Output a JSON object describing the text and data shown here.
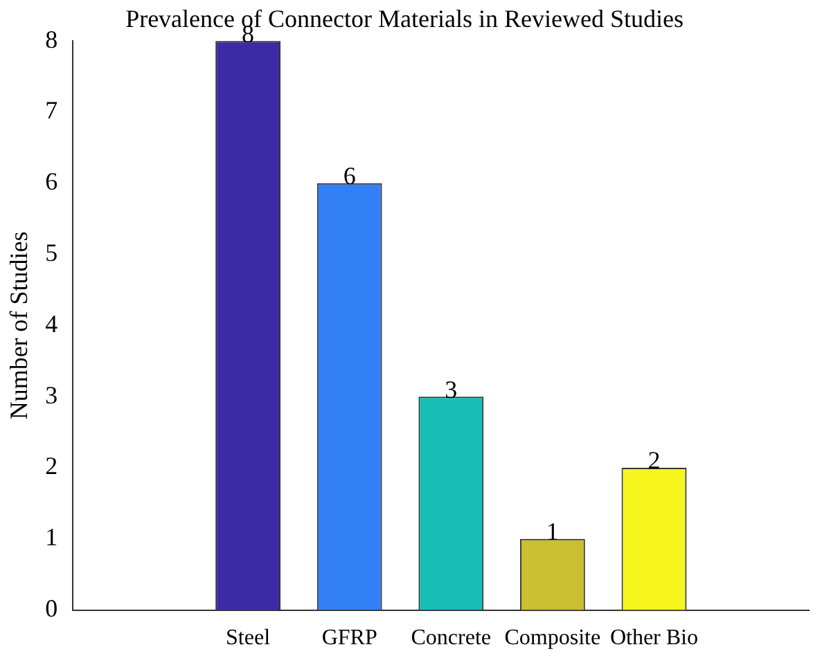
{
  "chart_data": {
    "type": "bar",
    "title": "Prevalence of Connector Materials in Reviewed Studies",
    "ylabel": "Number of Studies",
    "categories": [
      "Steel",
      "GFRP",
      "Concrete",
      "Composite",
      "Other Bio"
    ],
    "values": [
      8,
      6,
      3,
      1,
      2
    ],
    "colors": [
      "#3d2aa6",
      "#3380f6",
      "#17beb8",
      "#c9bf30",
      "#f6f61e"
    ],
    "ylim": [
      0,
      8
    ],
    "yticks": [
      0,
      1,
      2,
      3,
      4,
      5,
      6,
      7,
      8
    ],
    "grid": false,
    "legend": false,
    "data_labels": true
  }
}
